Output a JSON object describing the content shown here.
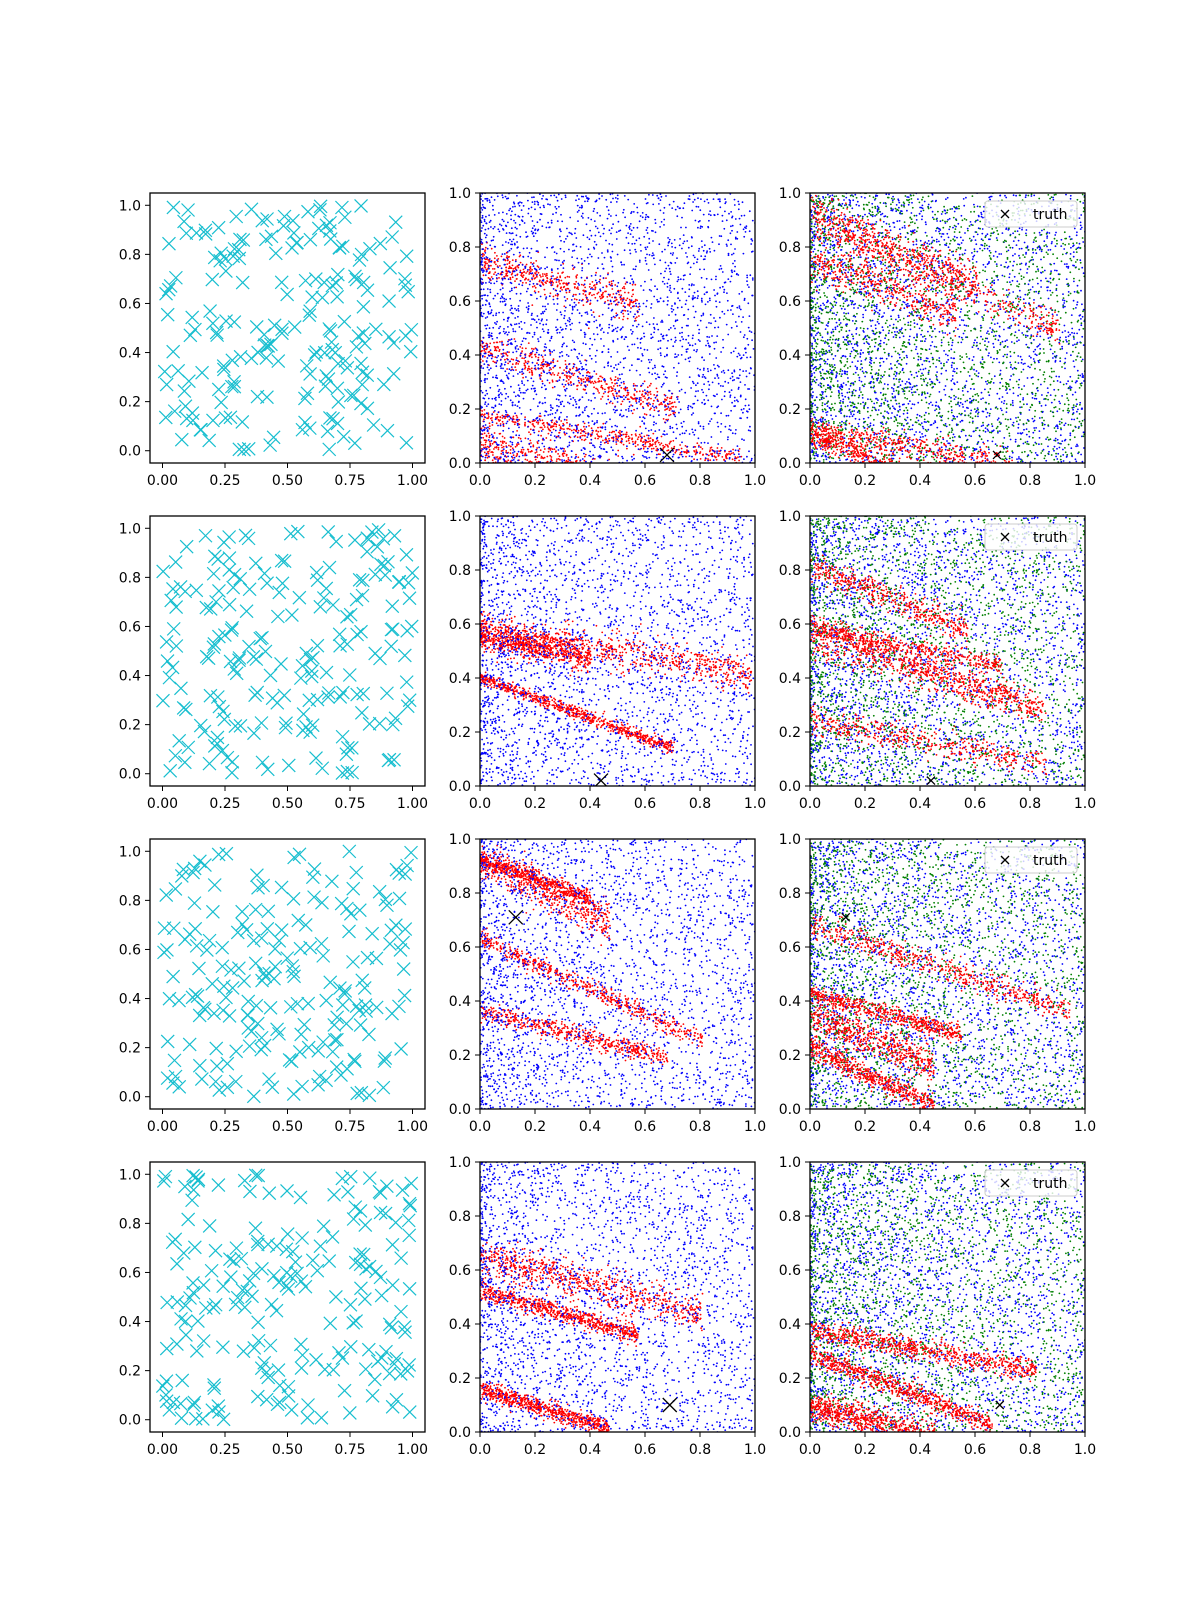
{
  "figure": {
    "rows": 4,
    "columns": 3,
    "colors": {
      "cyan": "#17BECF",
      "red": "#FF0000",
      "blue": "#0000FF",
      "green": "#008000",
      "black": "#000000"
    },
    "legend_label": "truth"
  },
  "chart_data": [
    {
      "type": "scatter",
      "row": 1,
      "col": 1,
      "xlim": [
        -0.05,
        1.05
      ],
      "ylim": [
        -0.05,
        1.05
      ],
      "xticks": [
        "0.00",
        "0.25",
        "0.50",
        "0.75",
        "1.00"
      ],
      "yticks": [
        "0.0",
        "0.2",
        "0.4",
        "0.6",
        "0.8",
        "1.0"
      ],
      "marker": "x",
      "series": [
        {
          "color": "#17BECF",
          "count": 200,
          "distribution": "uniform"
        }
      ]
    },
    {
      "type": "scatter",
      "row": 1,
      "col": 2,
      "xlim": [
        0,
        1
      ],
      "ylim": [
        0,
        1
      ],
      "xticks": [
        "0.0",
        "0.2",
        "0.4",
        "0.6",
        "0.8",
        "1.0"
      ],
      "yticks": [
        "0.0",
        "0.2",
        "0.4",
        "0.6",
        "0.8",
        "1.0"
      ],
      "marker": "dot",
      "series": [
        {
          "color": "#FF0000"
        },
        {
          "color": "#0000FF"
        }
      ],
      "truth": [
        0.68,
        0.03
      ]
    },
    {
      "type": "scatter",
      "row": 1,
      "col": 3,
      "xlim": [
        0,
        1
      ],
      "ylim": [
        0,
        1
      ],
      "xticks": [
        "0.0",
        "0.2",
        "0.4",
        "0.6",
        "0.8",
        "1.0"
      ],
      "yticks": [
        "0.0",
        "0.2",
        "0.4",
        "0.6",
        "0.8",
        "1.0"
      ],
      "marker": "dot",
      "series": [
        {
          "color": "#FF0000"
        },
        {
          "color": "#0000FF"
        },
        {
          "color": "#008000"
        }
      ],
      "truth": [
        0.68,
        0.03
      ],
      "legend": "top-right"
    },
    {
      "type": "scatter",
      "row": 2,
      "col": 1,
      "xlim": [
        -0.05,
        1.05
      ],
      "ylim": [
        -0.05,
        1.05
      ],
      "xticks": [
        "0.00",
        "0.25",
        "0.50",
        "0.75",
        "1.00"
      ],
      "yticks": [
        "0.0",
        "0.2",
        "0.4",
        "0.6",
        "0.8",
        "1.0"
      ],
      "marker": "x",
      "series": [
        {
          "color": "#17BECF",
          "count": 200,
          "distribution": "uniform"
        }
      ]
    },
    {
      "type": "scatter",
      "row": 2,
      "col": 2,
      "xlim": [
        0,
        1
      ],
      "ylim": [
        0,
        1
      ],
      "xticks": [
        "0.0",
        "0.2",
        "0.4",
        "0.6",
        "0.8",
        "1.0"
      ],
      "yticks": [
        "0.0",
        "0.2",
        "0.4",
        "0.6",
        "0.8",
        "1.0"
      ],
      "marker": "dot",
      "series": [
        {
          "color": "#FF0000"
        },
        {
          "color": "#0000FF"
        }
      ],
      "truth": [
        0.44,
        0.02
      ]
    },
    {
      "type": "scatter",
      "row": 2,
      "col": 3,
      "xlim": [
        0,
        1
      ],
      "ylim": [
        0,
        1
      ],
      "xticks": [
        "0.0",
        "0.2",
        "0.4",
        "0.6",
        "0.8",
        "1.0"
      ],
      "yticks": [
        "0.0",
        "0.2",
        "0.4",
        "0.6",
        "0.8",
        "1.0"
      ],
      "marker": "dot",
      "series": [
        {
          "color": "#FF0000"
        },
        {
          "color": "#0000FF"
        },
        {
          "color": "#008000"
        }
      ],
      "truth": [
        0.44,
        0.02
      ],
      "legend": "top-right"
    },
    {
      "type": "scatter",
      "row": 3,
      "col": 1,
      "xlim": [
        -0.05,
        1.05
      ],
      "ylim": [
        -0.05,
        1.05
      ],
      "xticks": [
        "0.00",
        "0.25",
        "0.50",
        "0.75",
        "1.00"
      ],
      "yticks": [
        "0.0",
        "0.2",
        "0.4",
        "0.6",
        "0.8",
        "1.0"
      ],
      "marker": "x",
      "series": [
        {
          "color": "#17BECF",
          "count": 200,
          "distribution": "uniform"
        }
      ]
    },
    {
      "type": "scatter",
      "row": 3,
      "col": 2,
      "xlim": [
        0,
        1
      ],
      "ylim": [
        0,
        1
      ],
      "xticks": [
        "0.0",
        "0.2",
        "0.4",
        "0.6",
        "0.8",
        "1.0"
      ],
      "yticks": [
        "0.0",
        "0.2",
        "0.4",
        "0.6",
        "0.8",
        "1.0"
      ],
      "marker": "dot",
      "series": [
        {
          "color": "#FF0000"
        },
        {
          "color": "#0000FF"
        }
      ],
      "truth": [
        0.13,
        0.71
      ]
    },
    {
      "type": "scatter",
      "row": 3,
      "col": 3,
      "xlim": [
        0,
        1
      ],
      "ylim": [
        0,
        1
      ],
      "xticks": [
        "0.0",
        "0.2",
        "0.4",
        "0.6",
        "0.8",
        "1.0"
      ],
      "yticks": [
        "0.0",
        "0.2",
        "0.4",
        "0.6",
        "0.8",
        "1.0"
      ],
      "marker": "dot",
      "series": [
        {
          "color": "#FF0000"
        },
        {
          "color": "#0000FF"
        },
        {
          "color": "#008000"
        }
      ],
      "truth": [
        0.13,
        0.71
      ],
      "legend": "top-right"
    },
    {
      "type": "scatter",
      "row": 4,
      "col": 1,
      "xlim": [
        -0.05,
        1.05
      ],
      "ylim": [
        -0.05,
        1.05
      ],
      "xticks": [
        "0.00",
        "0.25",
        "0.50",
        "0.75",
        "1.00"
      ],
      "yticks": [
        "0.0",
        "0.2",
        "0.4",
        "0.6",
        "0.8",
        "1.0"
      ],
      "marker": "x",
      "series": [
        {
          "color": "#17BECF",
          "count": 200,
          "distribution": "uniform"
        }
      ]
    },
    {
      "type": "scatter",
      "row": 4,
      "col": 2,
      "xlim": [
        0,
        1
      ],
      "ylim": [
        0,
        1
      ],
      "xticks": [
        "0.0",
        "0.2",
        "0.4",
        "0.6",
        "0.8",
        "1.0"
      ],
      "yticks": [
        "0.0",
        "0.2",
        "0.4",
        "0.6",
        "0.8",
        "1.0"
      ],
      "marker": "dot",
      "series": [
        {
          "color": "#FF0000"
        },
        {
          "color": "#0000FF"
        }
      ],
      "truth": [
        0.69,
        0.1
      ]
    },
    {
      "type": "scatter",
      "row": 4,
      "col": 3,
      "xlim": [
        0,
        1
      ],
      "ylim": [
        0,
        1
      ],
      "xticks": [
        "0.0",
        "0.2",
        "0.4",
        "0.6",
        "0.8",
        "1.0"
      ],
      "yticks": [
        "0.0",
        "0.2",
        "0.4",
        "0.6",
        "0.8",
        "1.0"
      ],
      "marker": "dot",
      "series": [
        {
          "color": "#FF0000"
        },
        {
          "color": "#0000FF"
        },
        {
          "color": "#008000"
        }
      ],
      "truth": [
        0.69,
        0.1
      ],
      "legend": "top-right"
    }
  ]
}
